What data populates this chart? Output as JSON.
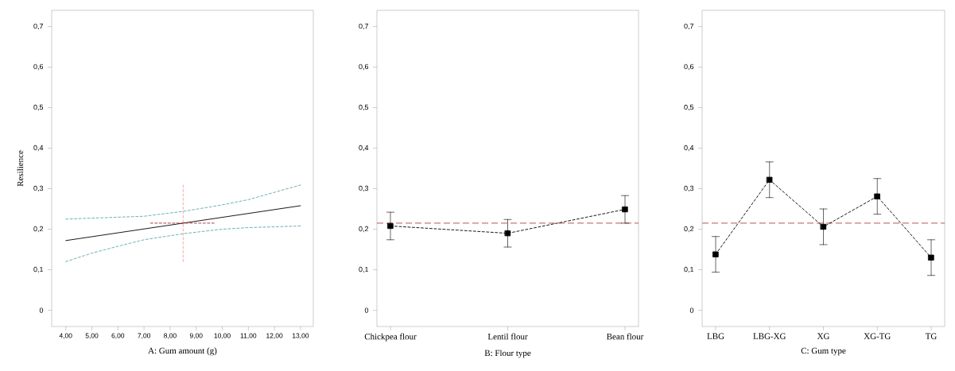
{
  "chart_data": [
    {
      "type": "line",
      "xlabel": "A: Gum amount (g)",
      "ylabel": "Resilience",
      "marker": "none",
      "xlim": [
        3.46,
        13.49
      ],
      "ylim": [
        -0.04,
        0.74
      ],
      "xticks": [
        {
          "value": 4,
          "label": "4,00"
        },
        {
          "value": 5,
          "label": "5,00"
        },
        {
          "value": 6,
          "label": "6,00"
        },
        {
          "value": 7,
          "label": "7,00"
        },
        {
          "value": 8,
          "label": "8,00"
        },
        {
          "value": 9,
          "label": "9,00"
        },
        {
          "value": 10,
          "label": "10,00"
        },
        {
          "value": 11,
          "label": "11,00"
        },
        {
          "value": 12,
          "label": "12,00"
        },
        {
          "value": 13,
          "label": "13,00"
        }
      ],
      "yticks": [
        0,
        {
          "value": 0.1,
          "label": "0,1"
        },
        {
          "value": 0.2,
          "label": "0,2"
        },
        {
          "value": 0.3,
          "label": "0,3"
        },
        {
          "value": 0.4,
          "label": "0,4"
        },
        {
          "value": 0.5,
          "label": "0,5"
        },
        {
          "value": 0.6,
          "label": "0,6"
        },
        {
          "value": 0.7,
          "label": "0,7"
        }
      ],
      "series": [
        {
          "color": "#000000",
          "line_style": "solid",
          "x": [
            4,
            8.5,
            13
          ],
          "values": [
            0.172,
            0.215,
            0.258
          ]
        },
        {
          "color": "#5fa8a8",
          "line_style": "dashed",
          "x": [
            4,
            7,
            8.5,
            10,
            11,
            12,
            13
          ],
          "values": [
            0.225,
            0.232,
            0.244,
            0.26,
            0.273,
            0.291,
            0.309
          ]
        },
        {
          "color": "#5fa8a8",
          "line_style": "dashed",
          "x": [
            4,
            5,
            6,
            7,
            8.5,
            10,
            11,
            12,
            13
          ],
          "values": [
            0.12,
            0.141,
            0.158,
            0.174,
            0.189,
            0.2,
            0.204,
            0.206,
            0.208
          ]
        },
        {
          "color": "#f4a0a0",
          "line_style": "dashed",
          "x": [
            8.5,
            8.5
          ],
          "values": [
            0.12,
            0.31
          ]
        },
        {
          "color": "#a52a2a",
          "line_style": "dashed",
          "x": [
            7.25,
            9.75
          ],
          "values": [
            0.215,
            0.215
          ]
        }
      ]
    },
    {
      "type": "line",
      "xlabel": "B: Flour type",
      "marker": "square",
      "line_style": "dashed",
      "categories": [
        "Chickpea flour",
        "Lentil flour",
        "Bean flour"
      ],
      "ylim": [
        -0.04,
        0.74
      ],
      "yticks": [
        0,
        {
          "value": 0.1,
          "label": "0,1"
        },
        {
          "value": 0.2,
          "label": "0,2"
        },
        {
          "value": 0.3,
          "label": "0,3"
        },
        {
          "value": 0.4,
          "label": "0,4"
        },
        {
          "value": 0.5,
          "label": "0,5"
        },
        {
          "value": 0.6,
          "label": "0,6"
        },
        {
          "value": 0.7,
          "label": "0,7"
        }
      ],
      "series": [
        {
          "color": "#000000",
          "values": [
            0.208,
            0.19,
            0.249
          ],
          "errors": [
            0.034,
            0.034,
            0.034
          ]
        }
      ],
      "ref_lines": [
        {
          "axis": "y",
          "value": 0.215,
          "color": "#a52a2a",
          "line_style": "dashed"
        }
      ]
    },
    {
      "type": "line",
      "xlabel": "C: Gum type",
      "marker": "square",
      "line_style": "dashed",
      "categories": [
        "LBG",
        "LBG-XG",
        "XG",
        "XG-TG",
        "TG"
      ],
      "ylim": [
        -0.04,
        0.74
      ],
      "yticks": [
        0,
        {
          "value": 0.1,
          "label": "0,1"
        },
        {
          "value": 0.2,
          "label": "0,2"
        },
        {
          "value": 0.3,
          "label": "0,3"
        },
        {
          "value": 0.4,
          "label": "0,4"
        },
        {
          "value": 0.5,
          "label": "0,5"
        },
        {
          "value": 0.6,
          "label": "0,6"
        },
        {
          "value": 0.7,
          "label": "0,7"
        }
      ],
      "series": [
        {
          "color": "#000000",
          "values": [
            0.138,
            0.322,
            0.206,
            0.281,
            0.13
          ],
          "errors": [
            0.044,
            0.044,
            0.044,
            0.044,
            0.044
          ]
        }
      ],
      "ref_lines": [
        {
          "axis": "y",
          "value": 0.215,
          "color": "#a52a2a",
          "line_style": "dashed"
        }
      ]
    }
  ]
}
